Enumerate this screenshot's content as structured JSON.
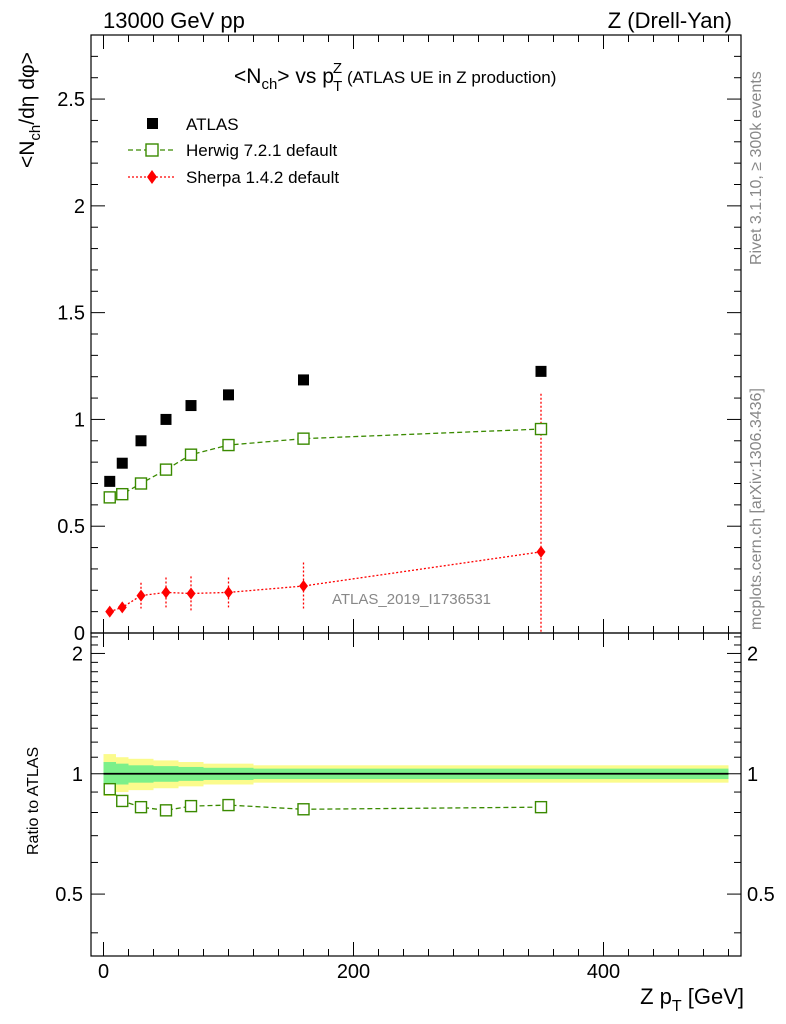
{
  "header": {
    "left": "13000 GeV pp",
    "right": "Z (Drell-Yan)"
  },
  "side": {
    "top": "Rivet 3.1.10, ≥ 300k events",
    "bottom": "mcplots.cern.ch [arXiv:1306.3436]"
  },
  "main_plot": {
    "title_main": "<N",
    "title_sub": "ch",
    "title_mid": "> vs p",
    "title_sup": "Z",
    "title_sub2": "T",
    "title_tail": " (ATLAS UE in Z production)",
    "ylabel": "<N",
    "ylabel_sub": "ch",
    "ylabel_tail": "/dη dφ>",
    "watermark": "ATLAS_2019_I1736531"
  },
  "legend": {
    "atlas": "ATLAS",
    "herwig": "Herwig 7.2.1 default",
    "sherpa": "Sherpa 1.4.2 default"
  },
  "ratio_plot": {
    "ylabel": "Ratio to ATLAS"
  },
  "xaxis": {
    "label": "Z p",
    "label_sub": "T",
    "label_unit": " [GeV]"
  },
  "colors": {
    "atlas": "#000000",
    "herwig": "#3a8a00",
    "sherpa": "#ff0000",
    "band_inner": "#7cf08a",
    "band_outer": "#fbfb8c"
  },
  "chart_data": [
    {
      "type": "scatter",
      "title": "<Nch> vs pTZ (ATLAS UE in Z production)",
      "xlabel": "Z pT [GeV]",
      "ylabel": "<Nch/dη dφ>",
      "xlim": [
        -10,
        510
      ],
      "ylim": [
        0,
        2.8
      ],
      "y_ticks": [
        "0",
        "0.5",
        "1",
        "1.5",
        "2",
        "2.5"
      ],
      "legend_position": "top-left",
      "x": [
        5,
        15,
        30,
        50,
        70,
        100,
        160,
        350
      ],
      "series": [
        {
          "name": "ATLAS",
          "values": [
            0.71,
            0.795,
            0.9,
            1.0,
            1.065,
            1.115,
            1.185,
            1.225
          ],
          "errors": [
            0.01,
            0.01,
            0.01,
            0.01,
            0.01,
            0.01,
            0.01,
            0.01
          ]
        },
        {
          "name": "Herwig 7.2.1 default",
          "values": [
            0.635,
            0.65,
            0.7,
            0.765,
            0.835,
            0.88,
            0.91,
            0.955
          ],
          "errors": [
            0.01,
            0.01,
            0.01,
            0.01,
            0.01,
            0.01,
            0.01,
            0.02
          ]
        },
        {
          "name": "Sherpa 1.4.2 default",
          "values": [
            0.1,
            0.12,
            0.175,
            0.19,
            0.185,
            0.19,
            0.22,
            0.38
          ],
          "errors": [
            0.01,
            0.02,
            0.06,
            0.07,
            0.08,
            0.07,
            0.11,
            0.74
          ]
        }
      ]
    },
    {
      "type": "line",
      "ylabel": "Ratio to ATLAS",
      "xlabel": "Z pT [GeV]",
      "xlim": [
        -10,
        510
      ],
      "ylim": [
        0.35,
        2.25
      ],
      "y_scale": "log",
      "y_ticks": [
        "0.5",
        "1",
        "2"
      ],
      "x_ticks": [
        "0",
        "200",
        "400"
      ],
      "x": [
        5,
        15,
        30,
        50,
        70,
        100,
        160,
        350
      ],
      "series": [
        {
          "name": "Herwig 7.2.1 default",
          "values": [
            0.915,
            0.855,
            0.825,
            0.81,
            0.83,
            0.835,
            0.815,
            0.825
          ]
        }
      ],
      "uncertainty_band": {
        "edges": [
          0,
          10,
          20,
          40,
          60,
          80,
          120,
          200,
          500
        ],
        "inner": [
          0.07,
          0.06,
          0.05,
          0.045,
          0.04,
          0.035,
          0.03,
          0.03
        ],
        "outer": [
          0.12,
          0.1,
          0.09,
          0.08,
          0.07,
          0.06,
          0.05,
          0.05
        ]
      }
    }
  ]
}
